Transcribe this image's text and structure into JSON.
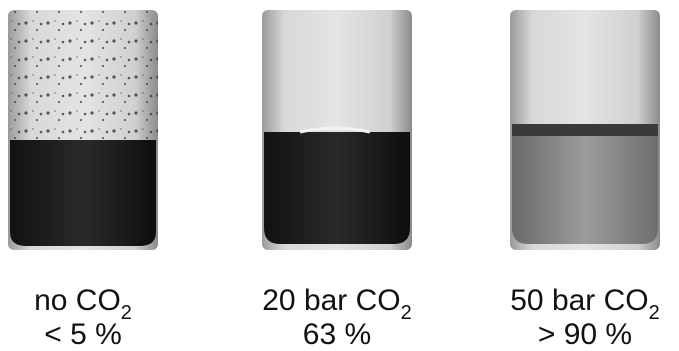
{
  "panels": [
    {
      "label": "no CO",
      "subscript": "2",
      "yield": "< 5 %"
    },
    {
      "label": "20 bar CO",
      "subscript": "2",
      "yield": "63 %"
    },
    {
      "label": "50 bar CO",
      "subscript": "2",
      "yield": "> 90 %"
    }
  ]
}
